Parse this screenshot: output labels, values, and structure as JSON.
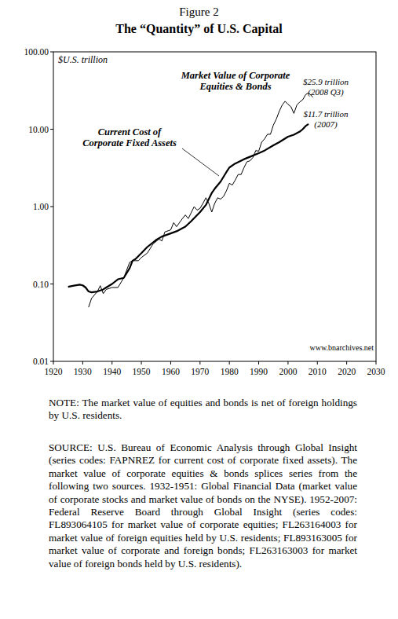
{
  "chart_data": {
    "type": "line",
    "title": "Figure 2",
    "subtitle": "The “Quantity” of U.S. Capital",
    "y_label": "$U.S. trillion",
    "log": "y",
    "grid": false,
    "xlim": [
      1920,
      2030
    ],
    "xticks": [
      1920,
      1930,
      1940,
      1950,
      1960,
      1970,
      1980,
      1990,
      2000,
      2010,
      2020,
      2030
    ],
    "ylim": [
      0.01,
      100
    ],
    "yticks": [
      {
        "value": 0.01,
        "label": "0.01"
      },
      {
        "value": 0.1,
        "label": "0.10"
      },
      {
        "value": 1,
        "label": "1.00"
      },
      {
        "value": 10,
        "label": "10.00"
      },
      {
        "value": 100,
        "label": "100.00"
      }
    ],
    "series": [
      {
        "name": "Market Value of Corporate Equities & Bonds",
        "color": "#000000",
        "x": [
          1932,
          1933,
          1935,
          1936,
          1937,
          1938,
          1940,
          1942,
          1944,
          1946,
          1947,
          1949,
          1950,
          1952,
          1954,
          1956,
          1957,
          1958,
          1960,
          1961,
          1962,
          1964,
          1965,
          1966,
          1968,
          1969,
          1970,
          1971,
          1972,
          1973,
          1974,
          1975,
          1976,
          1977,
          1978,
          1979,
          1980,
          1981,
          1982,
          1983,
          1984,
          1985,
          1986,
          1987,
          1988,
          1989,
          1990,
          1991,
          1992,
          1993,
          1994,
          1995,
          1996,
          1997,
          1998,
          1999,
          2000,
          2001,
          2002,
          2003,
          2004,
          2005,
          2006,
          2007,
          2008.5
        ],
        "values": [
          0.05,
          0.065,
          0.08,
          0.095,
          0.075,
          0.085,
          0.09,
          0.09,
          0.12,
          0.19,
          0.2,
          0.2,
          0.22,
          0.25,
          0.33,
          0.38,
          0.36,
          0.47,
          0.5,
          0.62,
          0.55,
          0.7,
          0.78,
          0.7,
          1.0,
          0.9,
          0.95,
          1.1,
          1.3,
          1.1,
          0.85,
          1.1,
          1.3,
          1.25,
          1.35,
          1.6,
          2.0,
          1.9,
          2.2,
          2.6,
          2.6,
          3.2,
          3.8,
          3.9,
          4.3,
          5.3,
          5.2,
          6.8,
          7.5,
          8.6,
          8.6,
          11.3,
          13.5,
          17,
          20.5,
          23,
          21,
          19.5,
          16,
          20.5,
          22.5,
          24,
          28,
          29.5,
          25.9
        ]
      },
      {
        "name": "Current Cost of Corporate Fixed Assets",
        "color": "#000000",
        "x": [
          1925,
          1927,
          1929,
          1930,
          1931,
          1932,
          1933,
          1935,
          1937,
          1938,
          1940,
          1942,
          1944,
          1946,
          1947,
          1948,
          1950,
          1952,
          1955,
          1957,
          1960,
          1962,
          1965,
          1967,
          1970,
          1972,
          1974,
          1975,
          1977,
          1979,
          1980,
          1982,
          1985,
          1987,
          1990,
          1992,
          1995,
          1997,
          2000,
          2002,
          2004,
          2005,
          2006,
          2007
        ],
        "values": [
          0.092,
          0.095,
          0.098,
          0.096,
          0.09,
          0.08,
          0.078,
          0.08,
          0.085,
          0.09,
          0.1,
          0.115,
          0.12,
          0.16,
          0.2,
          0.21,
          0.25,
          0.3,
          0.37,
          0.41,
          0.45,
          0.48,
          0.55,
          0.65,
          0.85,
          1.05,
          1.5,
          1.7,
          2.1,
          2.8,
          3.2,
          3.6,
          4.1,
          4.4,
          4.9,
          5.3,
          6.2,
          6.8,
          8.0,
          8.5,
          9.3,
          10.0,
          11.0,
          11.7
        ]
      }
    ],
    "annotations": [
      {
        "text": [
          "$25.9 trillion",
          "(2008 Q3)"
        ]
      },
      {
        "text": [
          "$11.7 trillion",
          "(2007)"
        ]
      },
      {
        "text": [
          "www.bnarchives.net"
        ]
      }
    ]
  },
  "note": "NOTE: The market value of equities and bonds is net of foreign holdings by U.S. residents.",
  "source": "SOURCE: U.S. Bureau of Economic Analysis through Global Insight (series codes: FAPNREZ for current cost of corporate fixed assets). The market value of corporate equities & bonds splices series from the following two sources. 1932-1951: Global Financial Data (market value of corporate stocks and market value of bonds on the NYSE). 1952-2007: Federal Reserve Board through Global Insight (series codes: FL893064105 for market value of corporate equities; FL263164003 for market value of foreign equities held by U.S. residents; FL893163005 for market value of corporate and foreign bonds; FL263163003 for market value of foreign bonds held by U.S. residents)."
}
